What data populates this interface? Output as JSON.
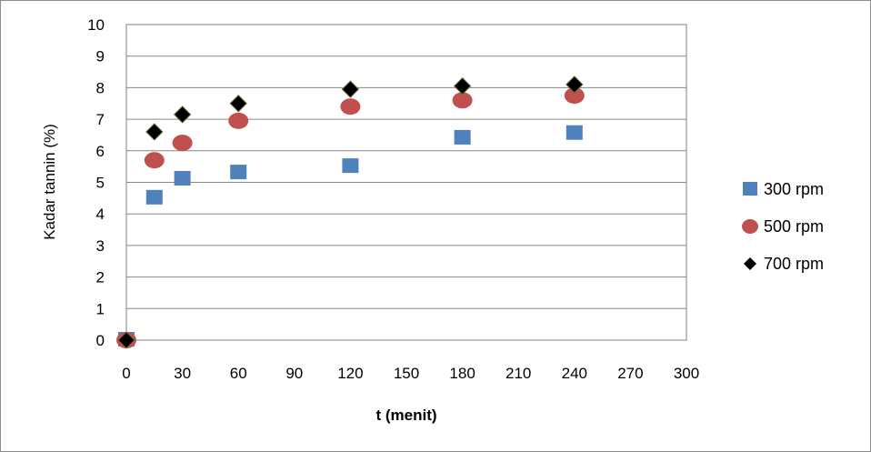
{
  "chart_data": {
    "type": "scatter",
    "title": "",
    "xlabel": "t (menit)",
    "ylabel": "Kadar tannin (%)",
    "xlim": [
      0,
      300
    ],
    "ylim": [
      0,
      10
    ],
    "xticks": [
      0,
      30,
      60,
      90,
      120,
      150,
      180,
      210,
      240,
      270,
      300
    ],
    "yticks": [
      0,
      1,
      2,
      3,
      4,
      5,
      6,
      7,
      8,
      9,
      10
    ],
    "grid": "horizontal",
    "legend_position": "right",
    "series": [
      {
        "name": "300 rpm",
        "marker": "square",
        "color": "#4f81bd",
        "points": [
          [
            0,
            0
          ],
          [
            15,
            4.5
          ],
          [
            30,
            5.1
          ],
          [
            60,
            5.3
          ],
          [
            120,
            5.5
          ],
          [
            180,
            6.4
          ],
          [
            240,
            6.55
          ]
        ]
      },
      {
        "name": "500 rpm",
        "marker": "circle",
        "color": "#c0504d",
        "points": [
          [
            0,
            0
          ],
          [
            15,
            5.7
          ],
          [
            30,
            6.25
          ],
          [
            60,
            6.95
          ],
          [
            120,
            7.4
          ],
          [
            180,
            7.6
          ],
          [
            240,
            7.75
          ]
        ]
      },
      {
        "name": "700 rpm",
        "marker": "diamond",
        "color": "#000000",
        "points": [
          [
            0,
            0
          ],
          [
            15,
            6.6
          ],
          [
            30,
            7.15
          ],
          [
            60,
            7.5
          ],
          [
            120,
            7.95
          ],
          [
            180,
            8.05
          ],
          [
            240,
            8.1
          ]
        ]
      }
    ]
  }
}
